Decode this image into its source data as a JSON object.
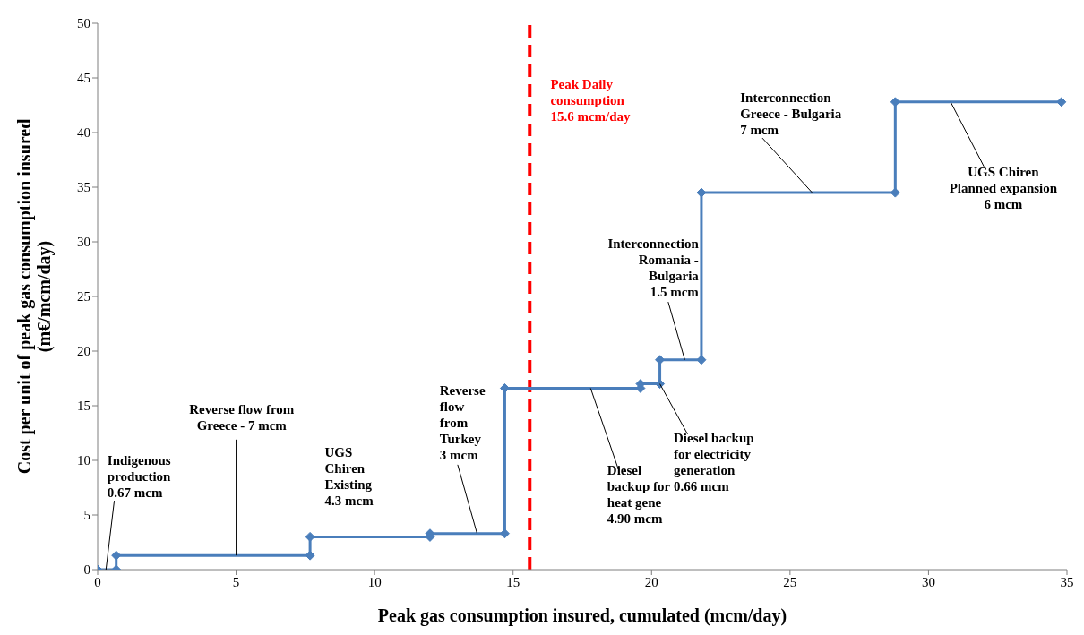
{
  "chart_data": {
    "type": "line",
    "xlabel": "Peak gas consumption insured, cumulated (mcm/day)",
    "ylabel": "Cost per unit of peak gas consumption insured (m€/mcm/day)",
    "x": [
      0,
      0.67,
      0.67,
      7.67,
      7.67,
      12,
      12,
      14.7,
      14.7,
      19.6,
      19.6,
      20.3,
      20.3,
      21.8,
      21.8,
      28.8,
      28.8,
      34.8
    ],
    "series": [
      {
        "color": "#4a7ebb",
        "values": [
          0,
          0,
          1.3,
          1.3,
          3,
          3,
          3.3,
          3.3,
          16.6,
          16.6,
          17,
          17,
          19.2,
          19.2,
          34.5,
          34.5,
          42.8,
          42.8
        ]
      }
    ],
    "xlim": [
      0,
      35
    ],
    "xticks": [
      0,
      5,
      10,
      15,
      20,
      25,
      30,
      35
    ],
    "ylim": [
      0,
      50
    ],
    "yticks": [
      0,
      5,
      10,
      15,
      20,
      25,
      30,
      35,
      40,
      45,
      50
    ],
    "grid": false,
    "legend": false,
    "marker": "diamond",
    "line_style": "solid",
    "ref_lines": [
      {
        "axis": "x",
        "value": 15.6,
        "label": "Peak Daily consumption 15.6 mcm/day",
        "color": "#ff0000",
        "line_style": "dashed"
      }
    ],
    "annotations": [
      {
        "text": "Indigenous production 0.67 mcm",
        "x": 0.3,
        "y": 0
      },
      {
        "text": "Reverse flow from Greece - 7 mcm",
        "x": 5,
        "y": 1.3
      },
      "UGS Chiren Existing 4.3 mcm",
      {
        "text": "Reverse flow from Turkey 3 mcm",
        "x": 13.7,
        "y": 3.3
      },
      {
        "text": "Diesel backup for heat gene 4.90 mcm",
        "x": 17.8,
        "y": 16.6
      },
      {
        "text": "Diesel backup for electricity generation 0.66 mcm",
        "x": 20.3,
        "y": 17
      },
      {
        "text": "Interconnection Romania - Bulgaria 1.5 mcm",
        "x": 21.2,
        "y": 19.2
      },
      {
        "text": "Interconnection Greece - Bulgaria 7 mcm",
        "x": 25.8,
        "y": 34.5
      },
      {
        "text": "UGS Chiren Planned expansion 6 mcm",
        "x": 30.8,
        "y": 42.8
      }
    ]
  }
}
